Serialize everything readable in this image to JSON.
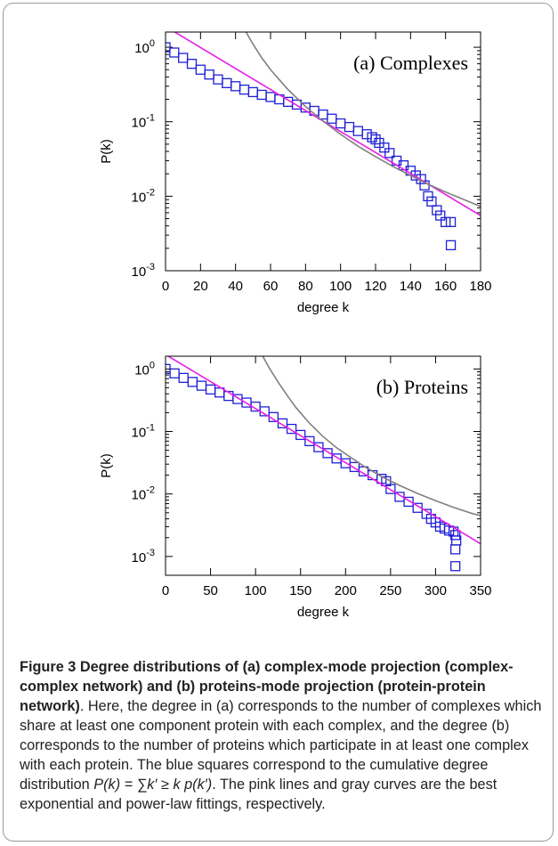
{
  "chart_data": [
    {
      "type": "scatter",
      "panel_label": "(a) Complexes",
      "xlabel": "degree k",
      "ylabel": "P(k)",
      "xlim": [
        0,
        180
      ],
      "ylim": [
        0.001,
        1.6
      ],
      "yscale": "log",
      "xticks": [
        "0",
        "20",
        "40",
        "60",
        "80",
        "100",
        "120",
        "140",
        "160",
        "180"
      ],
      "yticks": [
        "10",
        "10",
        "10",
        "10"
      ],
      "ytick_exponents": [
        "0",
        "-1",
        "-2",
        "-3"
      ],
      "series": [
        {
          "kind": "markers",
          "color": "#1f1fd6",
          "points": [
            [
              0,
              1.0
            ],
            [
              5,
              0.85
            ],
            [
              10,
              0.72
            ],
            [
              15,
              0.6
            ],
            [
              20,
              0.5
            ],
            [
              25,
              0.43
            ],
            [
              30,
              0.37
            ],
            [
              35,
              0.33
            ],
            [
              40,
              0.3
            ],
            [
              45,
              0.27
            ],
            [
              50,
              0.25
            ],
            [
              55,
              0.23
            ],
            [
              60,
              0.215
            ],
            [
              65,
              0.2
            ],
            [
              70,
              0.185
            ],
            [
              75,
              0.17
            ],
            [
              80,
              0.155
            ],
            [
              85,
              0.14
            ],
            [
              90,
              0.125
            ],
            [
              95,
              0.11
            ],
            [
              100,
              0.095
            ],
            [
              105,
              0.085
            ],
            [
              110,
              0.075
            ],
            [
              115,
              0.068
            ],
            [
              118,
              0.062
            ],
            [
              120,
              0.058
            ],
            [
              122,
              0.052
            ],
            [
              125,
              0.045
            ],
            [
              128,
              0.038
            ],
            [
              132,
              0.03
            ],
            [
              136,
              0.026
            ],
            [
              140,
              0.022
            ],
            [
              143,
              0.019
            ],
            [
              146,
              0.017
            ],
            [
              148,
              0.014
            ],
            [
              150,
              0.01
            ],
            [
              152,
              0.0085
            ],
            [
              155,
              0.0065
            ],
            [
              157,
              0.0055
            ],
            [
              160,
              0.0045
            ],
            [
              163,
              0.0045
            ],
            [
              163,
              0.0022
            ]
          ]
        },
        {
          "kind": "fit-exponential",
          "color": "#e81ee8",
          "points": [
            [
              0,
              1.9
            ],
            [
              180,
              0.0055
            ]
          ]
        },
        {
          "kind": "fit-power-law",
          "color": "#808080",
          "points": [
            [
              46,
              1.6
            ],
            [
              50,
              1.1
            ],
            [
              55,
              0.72
            ],
            [
              60,
              0.5
            ],
            [
              70,
              0.27
            ],
            [
              80,
              0.16
            ],
            [
              90,
              0.102
            ],
            [
              100,
              0.068
            ],
            [
              110,
              0.047
            ],
            [
              120,
              0.034
            ],
            [
              130,
              0.025
            ],
            [
              140,
              0.019
            ],
            [
              150,
              0.0145
            ],
            [
              160,
              0.0114
            ],
            [
              170,
              0.0091
            ],
            [
              180,
              0.0073
            ]
          ]
        }
      ]
    },
    {
      "type": "scatter",
      "panel_label": "(b) Proteins",
      "xlabel": "degree k",
      "ylabel": "P(k)",
      "xlim": [
        0,
        350
      ],
      "ylim": [
        0.0005,
        1.6
      ],
      "yscale": "log",
      "xticks": [
        "0",
        "50",
        "100",
        "150",
        "200",
        "250",
        "300",
        "350"
      ],
      "yticks": [
        "10",
        "10",
        "10",
        "10"
      ],
      "ytick_exponents": [
        "0",
        "-1",
        "-2",
        "-3"
      ],
      "series": [
        {
          "kind": "markers",
          "color": "#1f1fd6",
          "points": [
            [
              0,
              1.0
            ],
            [
              10,
              0.85
            ],
            [
              20,
              0.72
            ],
            [
              30,
              0.62
            ],
            [
              40,
              0.54
            ],
            [
              50,
              0.47
            ],
            [
              60,
              0.42
            ],
            [
              70,
              0.37
            ],
            [
              80,
              0.33
            ],
            [
              90,
              0.29
            ],
            [
              100,
              0.25
            ],
            [
              110,
              0.21
            ],
            [
              120,
              0.17
            ],
            [
              130,
              0.135
            ],
            [
              140,
              0.11
            ],
            [
              150,
              0.088
            ],
            [
              160,
              0.07
            ],
            [
              170,
              0.056
            ],
            [
              180,
              0.045
            ],
            [
              190,
              0.037
            ],
            [
              200,
              0.031
            ],
            [
              210,
              0.027
            ],
            [
              220,
              0.023
            ],
            [
              230,
              0.02
            ],
            [
              240,
              0.0175
            ],
            [
              245,
              0.016
            ],
            [
              250,
              0.012
            ],
            [
              260,
              0.009
            ],
            [
              270,
              0.0075
            ],
            [
              280,
              0.006
            ],
            [
              290,
              0.0048
            ],
            [
              295,
              0.004
            ],
            [
              300,
              0.0035
            ],
            [
              305,
              0.003
            ],
            [
              310,
              0.0028
            ],
            [
              315,
              0.0026
            ],
            [
              320,
              0.0025
            ],
            [
              322,
              0.0022
            ],
            [
              323,
              0.0018
            ],
            [
              322,
              0.0013
            ],
            [
              322,
              0.0007
            ]
          ]
        },
        {
          "kind": "fit-exponential",
          "color": "#e81ee8",
          "points": [
            [
              0,
              1.7
            ],
            [
              350,
              0.0016
            ]
          ]
        },
        {
          "kind": "fit-power-law",
          "color": "#808080",
          "points": [
            [
              108,
              1.6
            ],
            [
              115,
              1.05
            ],
            [
              125,
              0.62
            ],
            [
              135,
              0.38
            ],
            [
              145,
              0.24
            ],
            [
              160,
              0.135
            ],
            [
              175,
              0.083
            ],
            [
              190,
              0.055
            ],
            [
              205,
              0.039
            ],
            [
              220,
              0.028
            ],
            [
              240,
              0.019
            ],
            [
              260,
              0.0137
            ],
            [
              280,
              0.0102
            ],
            [
              300,
              0.0078
            ],
            [
              320,
              0.0061
            ],
            [
              340,
              0.0049
            ],
            [
              350,
              0.0045
            ]
          ]
        }
      ]
    }
  ],
  "caption": {
    "bold": "Figure 3 Degree distributions of (a) complex-mode projection (complex-complex network) and (b) proteins-mode projection (protein-protein network)",
    "text1": ". Here, the degree in (a) corresponds to the number of complexes which share at least one component protein with each complex, and the degree (b) corresponds to the number of proteins which participate in at least one complex with each protein. The blue squares correspond to the cumulative degree distribution ",
    "formula": "P(k) = ∑k′ ≥ k p(k′)",
    "text2": ". The pink lines and gray curves are the best exponential and power-law fittings, respectively."
  }
}
